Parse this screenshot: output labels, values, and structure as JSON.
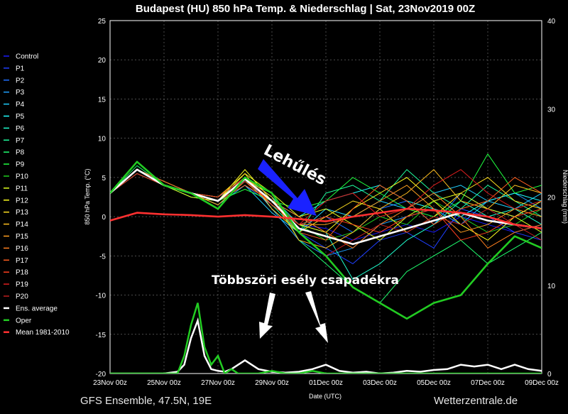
{
  "chart_data": {
    "type": "line",
    "title": "Budapest  (HU)  850 hPa Temp. & Niederschlag | Sat, 23Nov2019 00Z",
    "ylabel_left": "850 hPa Temp. (°C)",
    "ylabel_right": "Niederschlag (mm)",
    "xlabel": "Date (UTC)",
    "ylim_left": [
      -20,
      25
    ],
    "ylim_right": [
      0,
      40
    ],
    "yticks_left": [
      25,
      20,
      15,
      10,
      5,
      0,
      -5,
      -10,
      -15,
      -20
    ],
    "yticks_right": [
      40,
      30,
      20,
      10,
      0
    ],
    "xticks": [
      "23Nov 00z",
      "25Nov 00z",
      "27Nov 00z",
      "29Nov 00z",
      "01Dec 00z",
      "03Dec 00z",
      "05Dec 00z",
      "07Dec 00z",
      "09Dec 00z"
    ],
    "x_hours": [
      0,
      24,
      48,
      72,
      96,
      120,
      144,
      168,
      192,
      216,
      240,
      264,
      288,
      312,
      336,
      360,
      384
    ],
    "grid": true,
    "legend_position": "left",
    "footer_left": "GFS Ensemble, 47.5N, 19E",
    "footer_right": "Wetterzentrale.de",
    "series": [
      {
        "name": "Control",
        "color": "#1a1aff",
        "values": [
          3,
          6,
          4.5,
          3,
          2,
          5,
          2.5,
          -1,
          -1.5,
          -3,
          -2,
          -1,
          -2,
          0,
          -1,
          -2,
          -1
        ]
      },
      {
        "name": "P1",
        "color": "#1f3fff",
        "values": [
          3,
          6,
          4,
          3,
          2.5,
          4.5,
          2,
          -2,
          -4,
          -6,
          -3,
          -2,
          -4,
          1,
          0,
          -2,
          -3
        ]
      },
      {
        "name": "P2",
        "color": "#1f6fff",
        "values": [
          3,
          5.5,
          4,
          3,
          2,
          4,
          1.5,
          -1,
          0,
          -2,
          1,
          2,
          -1,
          3,
          1,
          0,
          2
        ]
      },
      {
        "name": "P3",
        "color": "#1f9fff",
        "values": [
          3,
          6,
          4.5,
          3,
          2,
          5,
          1,
          -3,
          -5,
          -4,
          -1,
          0,
          1,
          -1,
          2,
          3,
          1
        ]
      },
      {
        "name": "P4",
        "color": "#1fcfff",
        "values": [
          3,
          6,
          4,
          3,
          1.5,
          4,
          0.5,
          -2,
          1,
          0,
          2,
          1,
          3,
          4,
          2,
          1,
          3
        ]
      },
      {
        "name": "P5",
        "color": "#1fffff",
        "values": [
          3,
          5.5,
          4,
          3,
          2,
          4.5,
          2,
          0,
          2,
          3,
          4,
          2,
          1,
          0,
          2,
          3,
          2
        ]
      },
      {
        "name": "P6",
        "color": "#1fffcf",
        "values": [
          3,
          6,
          4,
          3,
          2.5,
          5,
          2.5,
          -1,
          -2,
          -8,
          -6,
          -3,
          -1,
          2,
          0,
          1,
          -1
        ]
      },
      {
        "name": "P7",
        "color": "#1fff9f",
        "values": [
          3,
          6,
          4,
          2.5,
          2,
          5,
          1.5,
          -2,
          3,
          4,
          2,
          6,
          3,
          1,
          4,
          2,
          0
        ]
      },
      {
        "name": "P8",
        "color": "#1fff6f",
        "values": [
          3,
          6.5,
          4,
          3,
          1.5,
          4.5,
          3,
          -3,
          -6,
          -9,
          -11,
          -7,
          -5,
          -3,
          -6,
          -4,
          -2
        ]
      },
      {
        "name": "P9",
        "color": "#1fff3f",
        "values": [
          3,
          6,
          4.5,
          3,
          2,
          3.5,
          2,
          1,
          2,
          5,
          3,
          1,
          0,
          2,
          8,
          3,
          4
        ]
      },
      {
        "name": "P10",
        "color": "#1fcf1f",
        "values": [
          3,
          6,
          4,
          3,
          2,
          5,
          2,
          -1,
          -3,
          -2,
          0,
          -1,
          2,
          0,
          -2,
          -1,
          1
        ]
      },
      {
        "name": "P11",
        "color": "#dfff1f",
        "values": [
          3,
          6,
          4,
          2.5,
          2,
          5.5,
          3,
          0,
          1,
          -1,
          -3,
          0,
          2,
          3,
          1,
          0,
          -2
        ]
      },
      {
        "name": "P12",
        "color": "#ffff1f",
        "values": [
          3,
          5.5,
          4,
          3,
          2,
          6,
          2,
          -1,
          -2,
          1,
          3,
          5,
          2,
          -1,
          -3,
          0,
          2
        ]
      },
      {
        "name": "P13",
        "color": "#ffdf1f",
        "values": [
          3,
          6,
          4.5,
          3,
          2.5,
          5.5,
          1,
          -2,
          0,
          2,
          1,
          -2,
          0,
          3,
          5,
          2,
          1
        ]
      },
      {
        "name": "P14",
        "color": "#ffbf1f",
        "values": [
          3,
          6,
          4,
          3,
          2,
          5,
          2.5,
          -3,
          -4,
          -2,
          1,
          3,
          6,
          2,
          1,
          4,
          3
        ]
      },
      {
        "name": "P15",
        "color": "#ff9f1f",
        "values": [
          3,
          6,
          4,
          3,
          1.5,
          4.5,
          1.5,
          -1,
          -1,
          0,
          2,
          4,
          1,
          -2,
          -1,
          1,
          0
        ]
      },
      {
        "name": "P16",
        "color": "#ff7f1f",
        "values": [
          3,
          6,
          4,
          3,
          2,
          5,
          2,
          0,
          -2,
          -4,
          -1,
          1,
          3,
          0,
          -4,
          -2,
          -1
        ]
      },
      {
        "name": "P17",
        "color": "#ff5f1f",
        "values": [
          3,
          6,
          4.5,
          3,
          2,
          4,
          2,
          -2,
          -3,
          1,
          4,
          2,
          -1,
          1,
          2,
          5,
          3
        ]
      },
      {
        "name": "P18",
        "color": "#ff3f1f",
        "values": [
          3,
          6,
          4,
          3,
          2.5,
          5,
          1.5,
          -1,
          0,
          -1,
          -2,
          0,
          1,
          -3,
          -2,
          0,
          1
        ]
      },
      {
        "name": "P19",
        "color": "#df1f1f",
        "values": [
          3,
          5.5,
          4,
          3,
          2,
          4.5,
          2,
          -1,
          2,
          3,
          0,
          1,
          4,
          6,
          3,
          1,
          2
        ]
      },
      {
        "name": "P20",
        "color": "#bf1f1f",
        "values": [
          3,
          6,
          4,
          3,
          2,
          5,
          3,
          -2,
          -5,
          -3,
          -1,
          -2,
          0,
          -1,
          1,
          -1,
          -3
        ]
      },
      {
        "name": "Ens. average",
        "color": "#ffffff",
        "values": [
          3,
          6,
          4,
          3,
          2,
          4.8,
          2,
          -1.5,
          -2.5,
          -3.5,
          -2.5,
          -1.5,
          -0.5,
          0.5,
          -0.5,
          -1,
          -1.5
        ]
      },
      {
        "name": "Oper",
        "color": "#22cc22",
        "values": [
          3,
          7,
          4,
          3,
          1,
          5,
          3,
          -2,
          -5,
          -9,
          -11,
          -13,
          -11,
          -10,
          -6,
          -2.5,
          -4
        ]
      },
      {
        "name": "Mean 1981-2010",
        "color": "#ff3030",
        "values": [
          -0.5,
          0.5,
          0.3,
          0.2,
          0,
          0.2,
          0,
          -0.3,
          -0.6,
          0,
          0.5,
          1,
          0.8,
          0.5,
          0,
          -1,
          -1.5
        ]
      }
    ],
    "precip_series": [
      {
        "name": "Ens. average",
        "color": "#ffffff",
        "x_hours": [
          0,
          48,
          60,
          66,
          72,
          78,
          84,
          90,
          96,
          102,
          108,
          114,
          120,
          132,
          144,
          156,
          168,
          180,
          192,
          204,
          216,
          228,
          240,
          252,
          264,
          276,
          288,
          300,
          312,
          324,
          336,
          348,
          360,
          372,
          384
        ],
        "values": [
          0,
          0,
          0.2,
          1,
          4,
          6,
          2,
          0.5,
          0.3,
          0.2,
          0.5,
          1,
          1.5,
          0.5,
          0.2,
          0.1,
          0.2,
          0.5,
          1,
          0.3,
          0.1,
          0.2,
          0,
          0.1,
          0.3,
          0.2,
          0.4,
          0.5,
          1,
          0.8,
          1,
          0.5,
          1,
          0.5,
          0.3
        ]
      },
      {
        "name": "Oper",
        "color": "#22cc22",
        "x_hours": [
          0,
          48,
          60,
          66,
          72,
          78,
          84,
          90,
          96,
          102,
          108,
          114,
          120,
          132,
          144,
          156,
          168,
          180,
          192,
          204,
          216,
          228,
          240,
          252,
          264,
          276,
          288,
          300,
          312,
          324,
          336,
          348,
          360,
          372,
          384
        ],
        "values": [
          0,
          0,
          0,
          2,
          5.5,
          8,
          3,
          1,
          2,
          0,
          0.5,
          0,
          0,
          0,
          0.3,
          0,
          0,
          0.3,
          0,
          0,
          0,
          0,
          0,
          0,
          0,
          0,
          0,
          0,
          0,
          0,
          0,
          0,
          0,
          0,
          0
        ]
      }
    ],
    "annotations": [
      {
        "text": "Lehűlés"
      },
      {
        "text": "Többszöri esély csapadékra"
      }
    ]
  }
}
